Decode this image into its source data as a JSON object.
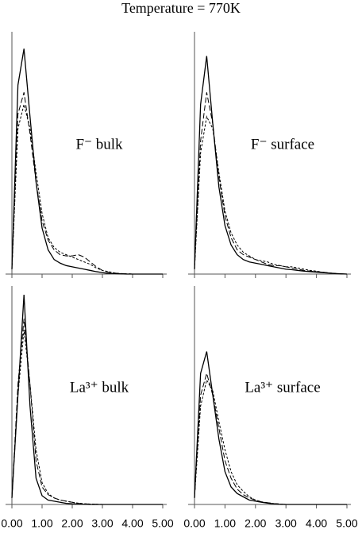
{
  "title": "Temperature = 770K",
  "chart_data": [
    {
      "type": "line",
      "label": "F⁻ bulk",
      "x": [
        0,
        0.2,
        0.4,
        0.6,
        0.8,
        1.0,
        1.2,
        1.4,
        1.6,
        1.8,
        2.0,
        2.2,
        2.4,
        2.6,
        2.8,
        3.0,
        3.2,
        3.4,
        3.6,
        3.8,
        4.0,
        4.2,
        4.4,
        4.6,
        4.8,
        5.0
      ],
      "xlim": [
        0,
        5
      ],
      "ylim": [
        0,
        1
      ],
      "xticks": [
        0,
        1,
        2,
        3,
        4,
        5
      ],
      "series": [
        {
          "color": "#000000",
          "dash": "solid",
          "values": [
            0.02,
            0.78,
            0.93,
            0.65,
            0.38,
            0.19,
            0.1,
            0.06,
            0.045,
            0.035,
            0.03,
            0.025,
            0.02,
            0.015,
            0.01,
            0.006,
            0.003,
            0.002,
            0.001,
            0,
            0,
            0,
            0,
            0,
            0,
            0
          ]
        },
        {
          "color": "#000000",
          "dash": "long",
          "values": [
            0.02,
            0.66,
            0.75,
            0.58,
            0.38,
            0.22,
            0.14,
            0.1,
            0.08,
            0.075,
            0.075,
            0.08,
            0.07,
            0.05,
            0.03,
            0.015,
            0.008,
            0.004,
            0.002,
            0.001,
            0,
            0,
            0,
            0,
            0,
            0
          ]
        },
        {
          "color": "#000000",
          "dash": "short",
          "values": [
            0.02,
            0.6,
            0.7,
            0.6,
            0.42,
            0.25,
            0.15,
            0.11,
            0.09,
            0.08,
            0.07,
            0.06,
            0.05,
            0.04,
            0.025,
            0.015,
            0.01,
            0.005,
            0.002,
            0.001,
            0,
            0,
            0,
            0,
            0,
            0
          ]
        }
      ]
    },
    {
      "type": "line",
      "label": "F⁻ surface",
      "x": [
        0,
        0.2,
        0.4,
        0.6,
        0.8,
        1.0,
        1.2,
        1.4,
        1.6,
        1.8,
        2.0,
        2.2,
        2.4,
        2.6,
        2.8,
        3.0,
        3.2,
        3.4,
        3.6,
        3.8,
        4.0,
        4.2,
        4.4,
        4.6,
        4.8,
        5.0
      ],
      "xlim": [
        0,
        5
      ],
      "ylim": [
        0,
        1
      ],
      "xticks": [
        0,
        1,
        2,
        3,
        4,
        5
      ],
      "series": [
        {
          "color": "#000000",
          "dash": "solid",
          "values": [
            0.02,
            0.7,
            0.9,
            0.62,
            0.36,
            0.2,
            0.12,
            0.08,
            0.06,
            0.05,
            0.045,
            0.04,
            0.035,
            0.03,
            0.025,
            0.02,
            0.018,
            0.015,
            0.012,
            0.01,
            0.008,
            0.006,
            0.004,
            0.002,
            0.001,
            0
          ]
        },
        {
          "color": "#000000",
          "dash": "long",
          "values": [
            0.02,
            0.55,
            0.75,
            0.62,
            0.4,
            0.24,
            0.15,
            0.1,
            0.08,
            0.07,
            0.06,
            0.05,
            0.04,
            0.035,
            0.035,
            0.03,
            0.025,
            0.02,
            0.015,
            0.012,
            0.01,
            0.008,
            0.005,
            0.003,
            0.001,
            0
          ]
        },
        {
          "color": "#000000",
          "dash": "short",
          "values": [
            0.02,
            0.5,
            0.65,
            0.6,
            0.42,
            0.26,
            0.17,
            0.12,
            0.09,
            0.075,
            0.06,
            0.055,
            0.05,
            0.04,
            0.035,
            0.03,
            0.03,
            0.025,
            0.02,
            0.015,
            0.012,
            0.008,
            0.005,
            0.003,
            0.001,
            0
          ]
        }
      ]
    },
    {
      "type": "line",
      "label": "La³⁺ bulk",
      "x": [
        0,
        0.2,
        0.4,
        0.6,
        0.8,
        1.0,
        1.2,
        1.4,
        1.6,
        1.8,
        2.0,
        2.2,
        2.4,
        2.6,
        2.8,
        3.0,
        3.2,
        3.4,
        3.6,
        3.8,
        4.0,
        4.2,
        4.4,
        4.6,
        4.8,
        5.0
      ],
      "xlim": [
        0,
        5
      ],
      "ylim": [
        0,
        1
      ],
      "xticks": [
        {
          "value": 0,
          "label": "0.00"
        },
        {
          "value": 1,
          "label": "1.00"
        },
        {
          "value": 2,
          "label": "2.00"
        },
        {
          "value": 3,
          "label": "3.00"
        },
        {
          "value": 4,
          "label": "4.00"
        },
        {
          "value": 5,
          "label": "5.00"
        }
      ],
      "series": [
        {
          "color": "#000000",
          "dash": "solid",
          "values": [
            0.03,
            0.5,
            0.96,
            0.45,
            0.12,
            0.04,
            0.02,
            0.015,
            0.01,
            0.005,
            0.003,
            0.002,
            0.001,
            0,
            0,
            0,
            0,
            0,
            0,
            0,
            0,
            0,
            0,
            0,
            0,
            0
          ]
        },
        {
          "color": "#000000",
          "dash": "long",
          "values": [
            0.03,
            0.55,
            0.85,
            0.55,
            0.2,
            0.08,
            0.045,
            0.03,
            0.02,
            0.015,
            0.01,
            0.005,
            0.003,
            0.002,
            0.001,
            0,
            0,
            0,
            0,
            0,
            0,
            0,
            0,
            0,
            0,
            0
          ]
        },
        {
          "color": "#000000",
          "dash": "short",
          "values": [
            0.03,
            0.5,
            0.8,
            0.55,
            0.25,
            0.1,
            0.05,
            0.03,
            0.02,
            0.015,
            0.01,
            0.006,
            0.003,
            0.002,
            0.001,
            0,
            0,
            0,
            0,
            0,
            0,
            0,
            0,
            0,
            0,
            0
          ]
        }
      ]
    },
    {
      "type": "line",
      "label": "La³⁺ surface",
      "x": [
        0,
        0.2,
        0.4,
        0.6,
        0.8,
        1.0,
        1.2,
        1.4,
        1.6,
        1.8,
        2.0,
        2.2,
        2.4,
        2.6,
        2.8,
        3.0,
        3.2,
        3.4,
        3.6,
        3.8,
        4.0,
        4.2,
        4.4,
        4.6,
        4.8,
        5.0
      ],
      "xlim": [
        0,
        5
      ],
      "ylim": [
        0,
        1
      ],
      "xticks": [
        {
          "value": 0,
          "label": "0.00"
        },
        {
          "value": 1,
          "label": "1.00"
        },
        {
          "value": 2,
          "label": "2.00"
        },
        {
          "value": 3,
          "label": "3.00"
        },
        {
          "value": 4,
          "label": "4.00"
        },
        {
          "value": 5,
          "label": "5.00"
        }
      ],
      "series": [
        {
          "color": "#000000",
          "dash": "solid",
          "values": [
            0.03,
            0.6,
            0.7,
            0.5,
            0.3,
            0.15,
            0.08,
            0.05,
            0.035,
            0.02,
            0.015,
            0.01,
            0.006,
            0.003,
            0.001,
            0,
            0,
            0,
            0,
            0,
            0,
            0,
            0,
            0,
            0,
            0
          ]
        },
        {
          "color": "#000000",
          "dash": "long",
          "values": [
            0.03,
            0.5,
            0.6,
            0.5,
            0.35,
            0.2,
            0.12,
            0.07,
            0.045,
            0.03,
            0.02,
            0.012,
            0.008,
            0.004,
            0.002,
            0,
            0,
            0,
            0,
            0,
            0,
            0,
            0,
            0,
            0,
            0
          ]
        },
        {
          "color": "#000000",
          "dash": "short",
          "values": [
            0.03,
            0.45,
            0.57,
            0.52,
            0.38,
            0.25,
            0.15,
            0.09,
            0.06,
            0.035,
            0.02,
            0.012,
            0.008,
            0.004,
            0.002,
            0,
            0,
            0,
            0,
            0,
            0,
            0,
            0,
            0,
            0,
            0
          ]
        }
      ]
    }
  ]
}
